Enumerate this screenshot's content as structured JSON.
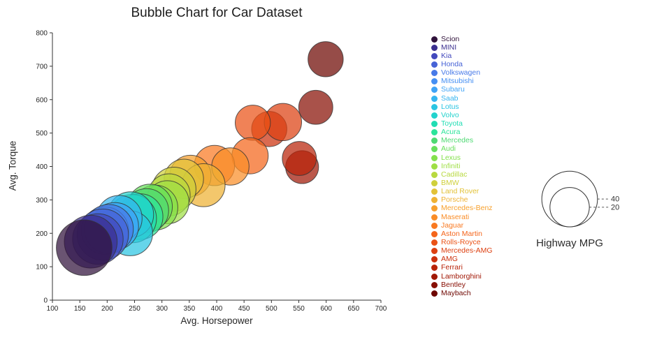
{
  "chart_data": {
    "type": "bubble",
    "title": "Bubble Chart for Car Dataset",
    "xlabel": "Avg. Horsepower",
    "ylabel": "Avg. Torque",
    "xlim": [
      100,
      700
    ],
    "ylim": [
      0,
      800
    ],
    "xticks": [
      100,
      150,
      200,
      250,
      300,
      350,
      400,
      450,
      500,
      550,
      600,
      650,
      700
    ],
    "yticks": [
      0,
      100,
      200,
      300,
      400,
      500,
      600,
      700,
      800
    ],
    "grid": false,
    "legend_position": "right",
    "size_legend": {
      "title": "Highway MPG",
      "values": [
        40,
        20
      ]
    },
    "series": [
      {
        "name": "Scion",
        "color": "#30123b",
        "x": 158,
        "y": 157,
        "size": 40
      },
      {
        "name": "MINI",
        "color": "#3b2f8f",
        "x": 170,
        "y": 175,
        "size": 36
      },
      {
        "name": "Kia",
        "color": "#4349bd",
        "x": 183,
        "y": 183,
        "size": 33
      },
      {
        "name": "Honda",
        "color": "#4763d6",
        "x": 192,
        "y": 196,
        "size": 34
      },
      {
        "name": "Volkswagen",
        "color": "#487ae8",
        "x": 203,
        "y": 213,
        "size": 31
      },
      {
        "name": "Mitsubishi",
        "color": "#458ff3",
        "x": 196,
        "y": 208,
        "size": 29
      },
      {
        "name": "Subaru",
        "color": "#3fa3f6",
        "x": 214,
        "y": 221,
        "size": 29
      },
      {
        "name": "Saab",
        "color": "#35b5f0",
        "x": 222,
        "y": 245,
        "size": 27
      },
      {
        "name": "Lotus",
        "color": "#2bc5e2",
        "x": 242,
        "y": 200,
        "size": 26
      },
      {
        "name": "Volvo",
        "color": "#23d3cd",
        "x": 243,
        "y": 256,
        "size": 27
      },
      {
        "name": "Toyota",
        "color": "#20ddb4",
        "x": 246,
        "y": 244,
        "size": 30
      },
      {
        "name": "Acura",
        "color": "#2ce49a",
        "x": 260,
        "y": 250,
        "size": 27
      },
      {
        "name": "Mercedes",
        "color": "#4fd973",
        "x": 272,
        "y": 268,
        "size": 25
      },
      {
        "name": "Audi",
        "color": "#67df5c",
        "x": 278,
        "y": 280,
        "size": 26
      },
      {
        "name": "Lexus",
        "color": "#84e14c",
        "x": 288,
        "y": 277,
        "size": 26
      },
      {
        "name": "Infiniti",
        "color": "#9fdf45",
        "x": 310,
        "y": 293,
        "size": 24
      },
      {
        "name": "Cadillac",
        "color": "#b8d940",
        "x": 313,
        "y": 315,
        "size": 23
      },
      {
        "name": "BMW",
        "color": "#cfd03c",
        "x": 322,
        "y": 332,
        "size": 25
      },
      {
        "name": "Land Rover",
        "color": "#e2c238",
        "x": 340,
        "y": 363,
        "size": 20
      },
      {
        "name": "Porsche",
        "color": "#efb233",
        "x": 376,
        "y": 344,
        "size": 24
      },
      {
        "name": "Mercedes-Benz",
        "color": "#f7a02d",
        "x": 352,
        "y": 372,
        "size": 22
      },
      {
        "name": "Maserati",
        "color": "#fa8d27",
        "x": 425,
        "y": 400,
        "size": 18
      },
      {
        "name": "Jaguar",
        "color": "#f97921",
        "x": 396,
        "y": 403,
        "size": 21
      },
      {
        "name": "Aston Martin",
        "color": "#f4651b",
        "x": 461,
        "y": 432,
        "size": 17
      },
      {
        "name": "Rolls-Royce",
        "color": "#ea5216",
        "x": 466,
        "y": 531,
        "size": 16
      },
      {
        "name": "Mercedes-AMG",
        "color": "#dd4011",
        "x": 521,
        "y": 533,
        "size": 18
      },
      {
        "name": "AMG",
        "color": "#cc300d",
        "x": 496,
        "y": 512,
        "size": 16
      },
      {
        "name": "Ferrari",
        "color": "#b82309",
        "x": 551,
        "y": 424,
        "size": 15
      },
      {
        "name": "Lamborghini",
        "color": "#a11806",
        "x": 556,
        "y": 398,
        "size": 14
      },
      {
        "name": "Bentley",
        "color": "#880f04",
        "x": 581,
        "y": 577,
        "size": 15
      },
      {
        "name": "Maybach",
        "color": "#6e0702",
        "x": 599,
        "y": 721,
        "size": 16
      }
    ]
  }
}
